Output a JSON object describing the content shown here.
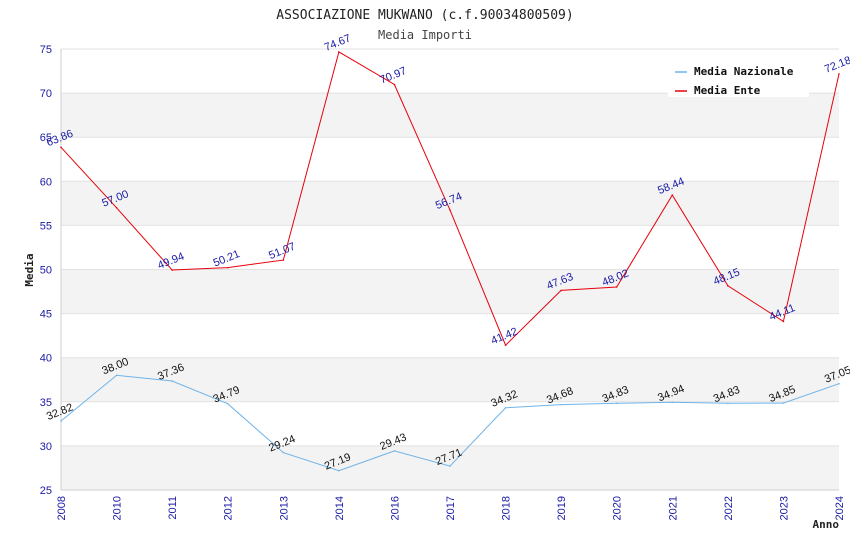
{
  "chart_data": {
    "type": "line",
    "title": "ASSOCIAZIONE MUKWANO (c.f.90034800509)",
    "subtitle": "Media Importi",
    "xlabel": "Anno",
    "ylabel": "Media",
    "categories": [
      "2008",
      "2010",
      "2011",
      "2012",
      "2013",
      "2014",
      "2016",
      "2017",
      "2018",
      "2019",
      "2020",
      "2021",
      "2022",
      "2023",
      "2024"
    ],
    "ylim": [
      25,
      75
    ],
    "yticks": [
      25,
      30,
      35,
      40,
      45,
      50,
      55,
      60,
      65,
      70,
      75
    ],
    "grid": true,
    "legend_position": "top-right",
    "series": [
      {
        "name": "Media Nazionale",
        "color": "#6fb3e8",
        "values": [
          32.82,
          38.0,
          37.36,
          34.79,
          29.24,
          27.19,
          29.43,
          27.71,
          34.32,
          34.68,
          34.83,
          34.94,
          34.83,
          34.85,
          37.05
        ],
        "labels": [
          "32.82",
          "38.00",
          "37.36",
          "34.79",
          "29.24",
          "27.19",
          "29.43",
          "27.71",
          "34.32",
          "34.68",
          "34.83",
          "34.94",
          "34.83",
          "34.85",
          "37.05"
        ]
      },
      {
        "name": "Media Ente",
        "color": "#e8000b",
        "values": [
          63.86,
          57.0,
          49.94,
          50.21,
          51.07,
          74.67,
          70.97,
          56.74,
          41.42,
          47.63,
          48.02,
          58.44,
          48.15,
          44.11,
          72.18
        ],
        "labels": [
          "63.86",
          "57.00",
          "49.94",
          "50.21",
          "51.07",
          "74.67",
          "70.97",
          "56.74",
          "41.42",
          "47.63",
          "48.02",
          "58.44",
          "48.15",
          "44.11",
          "72.18"
        ]
      }
    ]
  }
}
